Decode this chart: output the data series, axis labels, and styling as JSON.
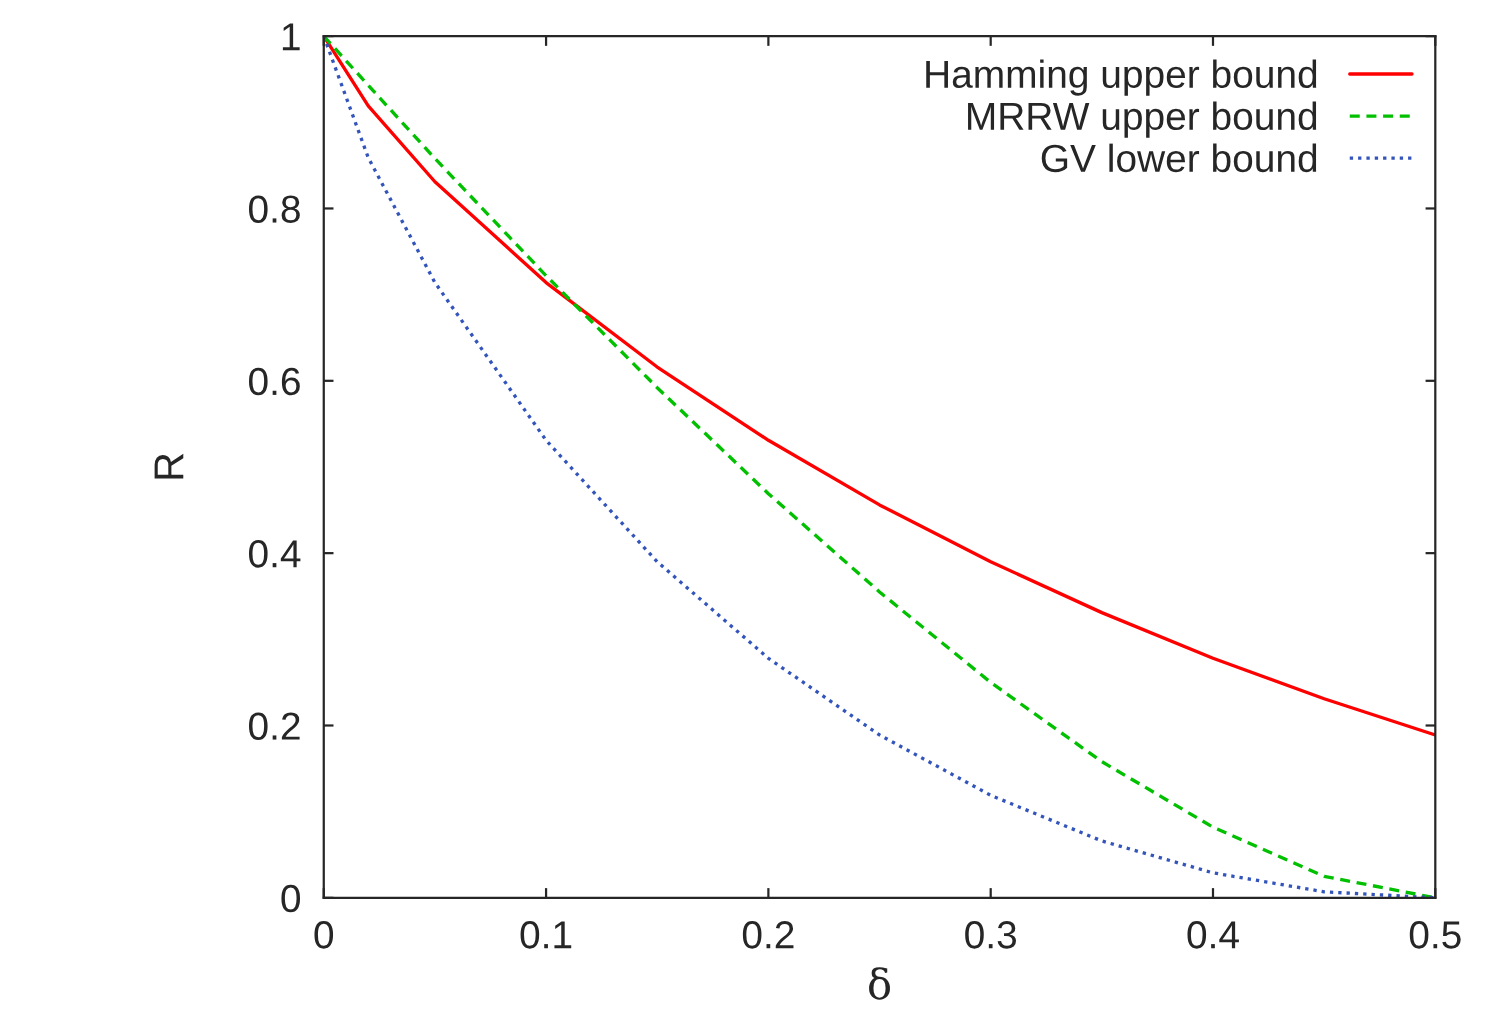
{
  "chart_data": {
    "type": "line",
    "xlabel": "δ",
    "ylabel": "R",
    "x": [
      0,
      0.02,
      0.05,
      0.1,
      0.15,
      0.2,
      0.25,
      0.3,
      0.35,
      0.4,
      0.45,
      0.5
    ],
    "series": [
      {
        "name": "Hamming upper bound",
        "color": "#ff0000",
        "line_style": "solid",
        "values": [
          1,
          0.919,
          0.831,
          0.714,
          0.616,
          0.531,
          0.456,
          0.39,
          0.331,
          0.278,
          0.231,
          0.189
        ]
      },
      {
        "name": "MRRW upper bound",
        "color": "#00c000",
        "line_style": "dashed",
        "values": [
          1,
          0.943,
          0.858,
          0.722,
          0.592,
          0.469,
          0.355,
          0.25,
          0.158,
          0.082,
          0.025,
          0
        ]
      },
      {
        "name": "GV lower bound",
        "color": "#3355bb",
        "line_style": "dotted",
        "values": [
          1,
          0.859,
          0.714,
          0.531,
          0.39,
          0.278,
          0.189,
          0.119,
          0.066,
          0.029,
          0.007,
          0
        ]
      }
    ],
    "xlim": [
      0,
      0.5
    ],
    "xticks": [
      0,
      0.1,
      0.2,
      0.3,
      0.4,
      0.5
    ],
    "ylim": [
      0,
      1
    ],
    "yticks": [
      0,
      0.2,
      0.4,
      0.6,
      0.8,
      1
    ],
    "grid": false,
    "legend": "top right",
    "marker": "none"
  }
}
